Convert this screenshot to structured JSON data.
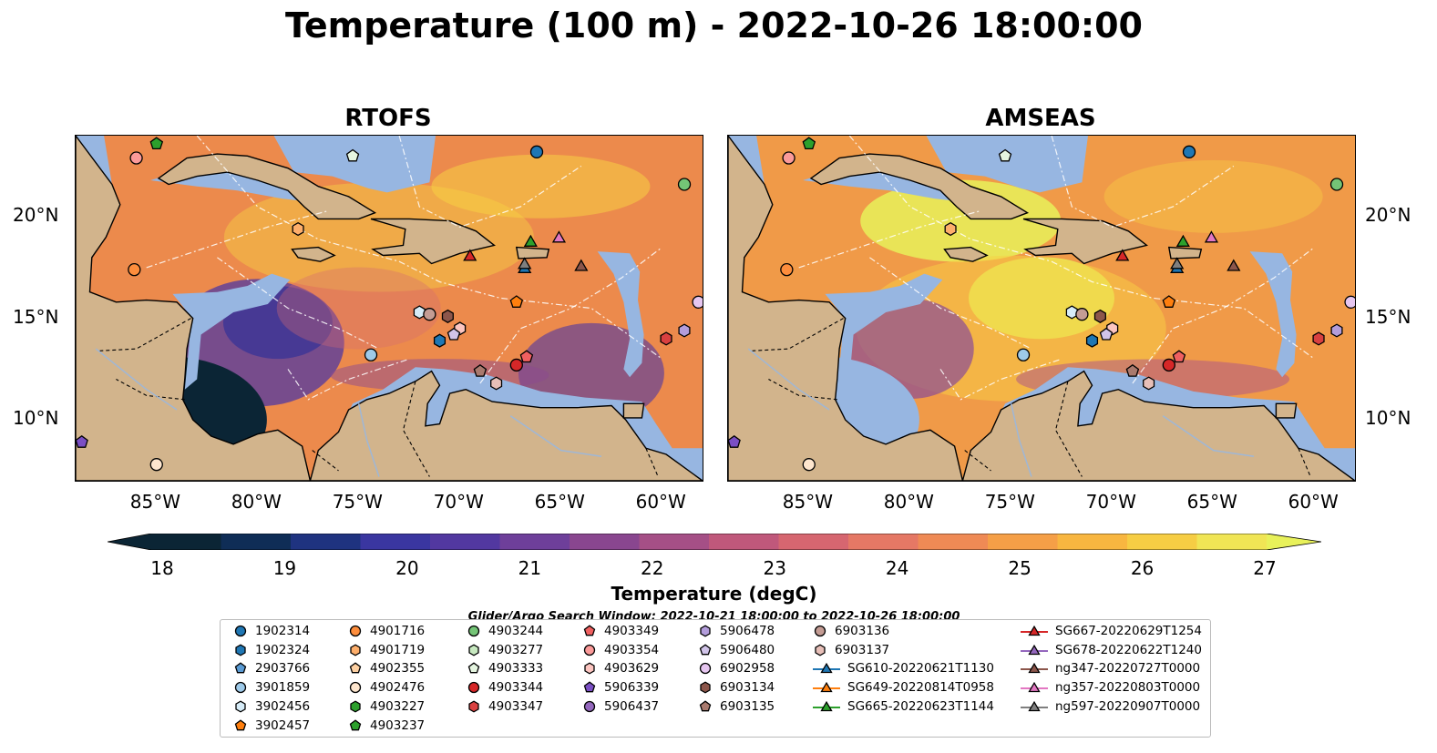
{
  "title": "Temperature (100 m) - 2022-10-26 18:00:00",
  "panels": [
    {
      "title": "RTOFS",
      "variant": "rtofs"
    },
    {
      "title": "AMSEAS",
      "variant": "amseas"
    }
  ],
  "axes": {
    "lon_ticks": [
      "85°W",
      "80°W",
      "75°W",
      "70°W",
      "65°W",
      "60°W"
    ],
    "lon_values": [
      -85,
      -80,
      -75,
      -70,
      -65,
      -60
    ],
    "lat_ticks": [
      "20°N",
      "15°N",
      "10°N"
    ],
    "lat_values": [
      20,
      15,
      10
    ],
    "lon_range": [
      -89,
      -58
    ],
    "lat_range": [
      7,
      24
    ]
  },
  "colorbar": {
    "label": "Temperature (degC)",
    "ticks": [
      "18",
      "19",
      "20",
      "21",
      "22",
      "23",
      "24",
      "25",
      "26",
      "27"
    ],
    "range": [
      18,
      27
    ],
    "extend": "both",
    "colors": [
      "#0b2535",
      "#0f2d56",
      "#1f3380",
      "#3a36a0",
      "#5238a0",
      "#6e3f9a",
      "#89468f",
      "#a54f86",
      "#c0587b",
      "#d66670",
      "#e57865",
      "#ef8a55",
      "#f59f47",
      "#f8b640",
      "#f6cd44",
      "#f0e555"
    ]
  },
  "map_colors": {
    "land": "#d2b48c",
    "shallow": "#97b6e1",
    "rtofs_base": "#ec8a4c",
    "amseas_base": "#f09a48",
    "cold": "#5a3c9c",
    "warm": "#f7d044",
    "hot": "#e8f15a"
  },
  "search_window": "Glider/Argo Search Window: 2022-10-21 18:00:00 to 2022-10-26 18:00:00",
  "legend": [
    {
      "label": "1902314",
      "marker": "circle",
      "color": "#1f77b4"
    },
    {
      "label": "1902324",
      "marker": "hexagon",
      "color": "#1f77b4"
    },
    {
      "label": "2903766",
      "marker": "pentagon",
      "color": "#5a9bd4"
    },
    {
      "label": "3901859",
      "marker": "circle",
      "color": "#9ecae9"
    },
    {
      "label": "3902456",
      "marker": "hexagon",
      "color": "#d6ecf8"
    },
    {
      "label": "3902457",
      "marker": "pentagon",
      "color": "#ff7f0e"
    },
    {
      "label": "4901716",
      "marker": "circle",
      "color": "#fd8d3c"
    },
    {
      "label": "4901719",
      "marker": "hexagon",
      "color": "#fdae6b"
    },
    {
      "label": "4902355",
      "marker": "pentagon",
      "color": "#fdd0a2"
    },
    {
      "label": "4902476",
      "marker": "circle",
      "color": "#fee6ce"
    },
    {
      "label": "4903227",
      "marker": "hexagon",
      "color": "#2ca02c"
    },
    {
      "label": "4903237",
      "marker": "pentagon",
      "color": "#2ca02c"
    },
    {
      "label": "4903244",
      "marker": "circle",
      "color": "#74c476"
    },
    {
      "label": "4903277",
      "marker": "hexagon",
      "color": "#c7e9c0"
    },
    {
      "label": "4903333",
      "marker": "pentagon",
      "color": "#e5f5e0"
    },
    {
      "label": "4903344",
      "marker": "circle",
      "color": "#d62728"
    },
    {
      "label": "4903347",
      "marker": "hexagon",
      "color": "#d94040"
    },
    {
      "label": "4903349",
      "marker": "pentagon",
      "color": "#f06060"
    },
    {
      "label": "4903354",
      "marker": "circle",
      "color": "#fb9a99"
    },
    {
      "label": "4903629",
      "marker": "hexagon",
      "color": "#fcc5c0"
    },
    {
      "label": "5906339",
      "marker": "pentagon",
      "color": "#7b4fc4"
    },
    {
      "label": "5906437",
      "marker": "circle",
      "color": "#9467bd"
    },
    {
      "label": "5906478",
      "marker": "hexagon",
      "color": "#b39ddb"
    },
    {
      "label": "5906480",
      "marker": "pentagon",
      "color": "#d1c4e9"
    },
    {
      "label": "6902958",
      "marker": "circle",
      "color": "#e6c6f0"
    },
    {
      "label": "6903134",
      "marker": "hexagon",
      "color": "#8c564b"
    },
    {
      "label": "6903135",
      "marker": "pentagon",
      "color": "#a97a6e"
    },
    {
      "label": "6903136",
      "marker": "circle",
      "color": "#c49c94"
    },
    {
      "label": "6903137",
      "marker": "hexagon",
      "color": "#e7bfb8"
    },
    {
      "label": "SG610-20220621T1130",
      "marker": "triangle-line",
      "color": "#1f77b4"
    },
    {
      "label": "SG649-20220814T0958",
      "marker": "triangle-line",
      "color": "#ff7f0e"
    },
    {
      "label": "SG665-20220623T1144",
      "marker": "triangle-line",
      "color": "#2ca02c"
    },
    {
      "label": "SG667-20220629T1254",
      "marker": "triangle-line",
      "color": "#d62728"
    },
    {
      "label": "SG678-20220622T1240",
      "marker": "triangle-line",
      "color": "#9467bd"
    },
    {
      "label": "ng347-20220727T0000",
      "marker": "triangle-line",
      "color": "#8c564b"
    },
    {
      "label": "ng357-20220803T0000",
      "marker": "triangle-line",
      "color": "#e377c2"
    },
    {
      "label": "ng597-20220907T0000",
      "marker": "triangle-line",
      "color": "#7f7f7f"
    }
  ],
  "markers": [
    {
      "label": "4903237",
      "lon": -85.0,
      "lat": 23.6
    },
    {
      "label": "4903354",
      "lon": -86.0,
      "lat": 22.9
    },
    {
      "label": "4903333",
      "lon": -75.3,
      "lat": 23.0
    },
    {
      "label": "1902314",
      "lon": -66.2,
      "lat": 23.2
    },
    {
      "label": "4903244",
      "lon": -58.9,
      "lat": 21.6
    },
    {
      "label": "4901719",
      "lon": -78.0,
      "lat": 19.4
    },
    {
      "label": "4901716",
      "lon": -86.1,
      "lat": 17.4
    },
    {
      "label": "SG665-20220623T1144",
      "lon": -66.5,
      "lat": 18.8
    },
    {
      "label": "ng357-20220803T0000",
      "lon": -65.1,
      "lat": 19.0
    },
    {
      "label": "SG667-20220629T1254",
      "lon": -69.5,
      "lat": 18.1
    },
    {
      "label": "SG610-20220621T1130",
      "lon": -66.8,
      "lat": 17.5
    },
    {
      "label": "ng597-20220907T0000",
      "lon": -66.8,
      "lat": 17.7
    },
    {
      "label": "ng347-20220727T0000",
      "lon": -64.0,
      "lat": 17.6
    },
    {
      "label": "3902457",
      "lon": -67.2,
      "lat": 15.8
    },
    {
      "label": "6902958",
      "lon": -58.2,
      "lat": 15.8
    },
    {
      "label": "3902456",
      "lon": -72.0,
      "lat": 15.3
    },
    {
      "label": "6903136",
      "lon": -71.5,
      "lat": 15.2
    },
    {
      "label": "6903134",
      "lon": -70.6,
      "lat": 15.1
    },
    {
      "label": "4903629",
      "lon": -70.0,
      "lat": 14.5
    },
    {
      "label": "5906480",
      "lon": -70.3,
      "lat": 14.2
    },
    {
      "label": "5906478",
      "lon": -58.9,
      "lat": 14.4
    },
    {
      "label": "1902324",
      "lon": -71.0,
      "lat": 13.9
    },
    {
      "label": "4903347",
      "lon": -59.8,
      "lat": 14.0
    },
    {
      "label": "3901859",
      "lon": -74.4,
      "lat": 13.2
    },
    {
      "label": "4903349",
      "lon": -66.7,
      "lat": 13.1
    },
    {
      "label": "4903344",
      "lon": -67.2,
      "lat": 12.7
    },
    {
      "label": "6903135",
      "lon": -69.0,
      "lat": 12.4
    },
    {
      "label": "6903137",
      "lon": -68.2,
      "lat": 11.8
    },
    {
      "label": "5906339",
      "lon": -88.7,
      "lat": 8.9
    },
    {
      "label": "4902476",
      "lon": -85.0,
      "lat": 7.8
    }
  ]
}
